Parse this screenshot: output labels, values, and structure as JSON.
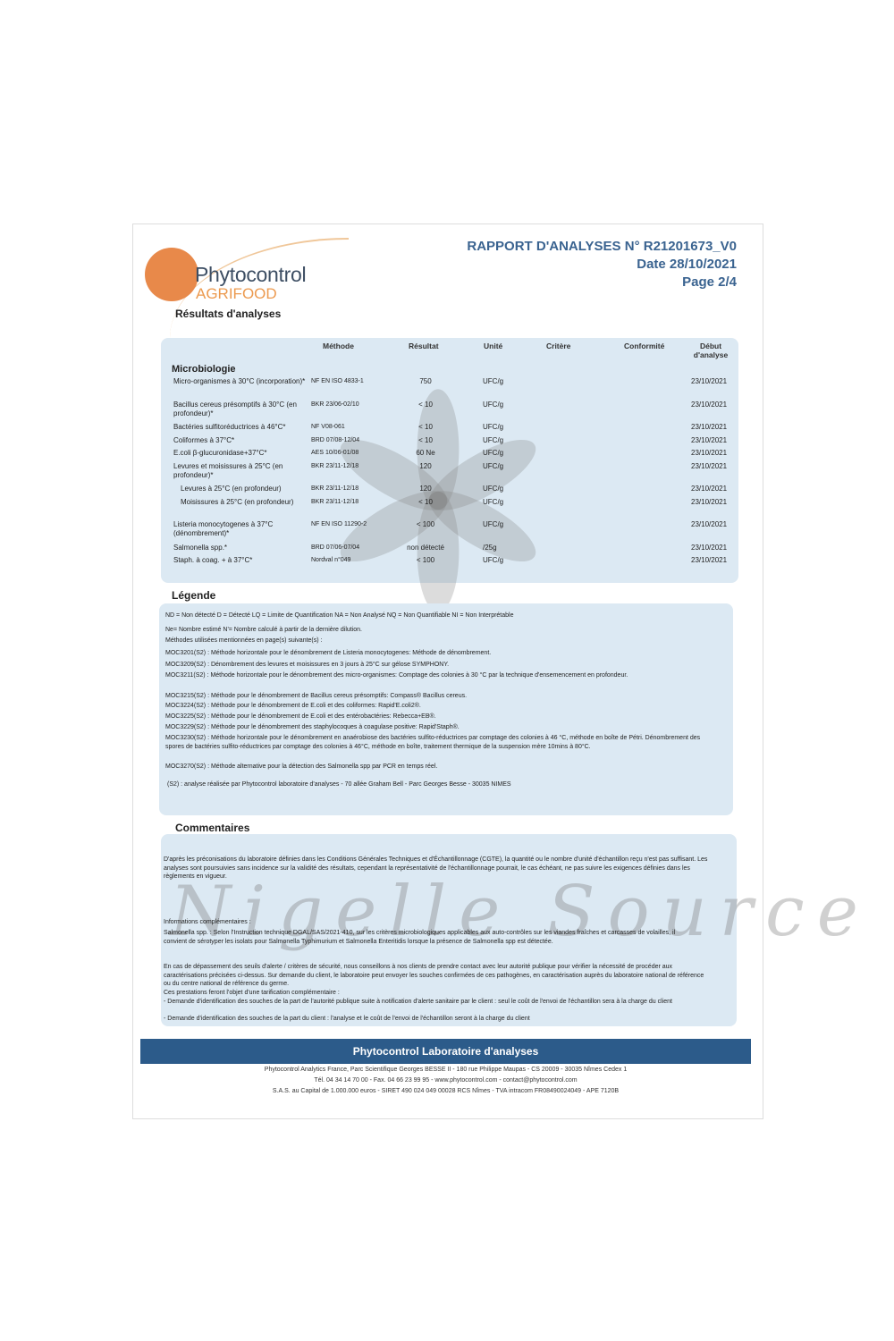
{
  "logo": {
    "name": "Phytocontrol",
    "sub": "AGRIFOOD",
    "colors": {
      "orange": "#e8894a",
      "navy": "#3d4e63"
    }
  },
  "header": {
    "title": "RAPPORT D'ANALYSES N° R21201673_V0",
    "date": "Date 28/10/2021",
    "page": "Page 2/4"
  },
  "section_results": "Résultats d'analyses",
  "table": {
    "headers": {
      "methode": "Méthode",
      "resultat": "Résultat",
      "unite": "Unité",
      "critere": "Critère",
      "conformite": "Conformité",
      "debut": "Début d'analyse"
    },
    "group": "Microbiologie",
    "rows": [
      {
        "param": "Micro-organismes à 30°C (incorporation)*",
        "methode": "NF EN ISO 4833-1",
        "resultat": "750",
        "unite": "UFC/g",
        "date": "23/10/2021"
      },
      {
        "param": "Bacillus cereus présomptifs à 30°C (en profondeur)*",
        "methode": "BKR 23/06-02/10",
        "resultat": "< 10",
        "unite": "UFC/g",
        "date": "23/10/2021"
      },
      {
        "param": "Bactéries sulfitoréductrices à 46°C*",
        "methode": "NF V08-061",
        "resultat": "< 10",
        "unite": "UFC/g",
        "date": "23/10/2021"
      },
      {
        "param": "Coliformes à 37°C*",
        "methode": "BRD 07/08-12/04",
        "resultat": "< 10",
        "unite": "UFC/g",
        "date": "23/10/2021"
      },
      {
        "param": "E.coli β-glucuronidase+37°C*",
        "methode": "AES 10/06-01/08",
        "resultat": "60 Ne",
        "unite": "UFC/g",
        "date": "23/10/2021"
      },
      {
        "param": "Levures et moisissures à 25°C (en profondeur)*",
        "methode": "BKR 23/11-12/18",
        "resultat": "120",
        "unite": "UFC/g",
        "date": "23/10/2021"
      },
      {
        "param": "Levures à 25°C (en profondeur)",
        "methode": "BKR 23/11-12/18",
        "resultat": "120",
        "unite": "UFC/g",
        "date": "23/10/2021",
        "indent": true
      },
      {
        "param": "Moisissures à 25°C (en profondeur)",
        "methode": "BKR 23/11-12/18",
        "resultat": "< 10",
        "unite": "UFC/g",
        "date": "23/10/2021",
        "indent": true
      },
      {
        "param": "Listeria monocytogenes à 37°C (dénombrement)*",
        "methode": "NF EN ISO 11290-2",
        "resultat": "< 100",
        "unite": "UFC/g",
        "date": "23/10/2021"
      },
      {
        "param": "Salmonella spp.*",
        "methode": "BRD 07/06-07/04",
        "resultat": "non détecté",
        "unite": "/25g",
        "date": "23/10/2021"
      },
      {
        "param": "Staph. à coag. + à 37°C*",
        "methode": "Nordval n°049",
        "resultat": "< 100",
        "unite": "UFC/g",
        "date": "23/10/2021"
      }
    ]
  },
  "legend": {
    "title": "Légende",
    "lines": [
      "ND = Non détecté   D = Détecté   LQ = Limite de Quantification   NA = Non Analysé   NQ = Non Quantifiable   NI = Non Interprétable",
      "Ne= Nombre estimé   N'= Nombre calculé à partir de la dernière dilution.",
      "Méthodes utilisées mentionnées en page(s) suivante(s) :",
      "MOC3201(S2) : Méthode horizontale pour le dénombrement de Listeria monocytogenes: Méthode de dénombrement.",
      "MOC3209(S2) : Dénombrement des levures et moisissures en 3 jours à 25°C sur gélose SYMPHONY.",
      "MOC3211(S2) : Méthode horizontale pour le dénombrement des micro-organismes: Comptage des colonies à 30 °C par la technique d'ensemencement en profondeur.",
      "MOC3215(S2) : Méthode pour le dénombrement de Bacillus cereus présomptifs: Compass® Bacillus cereus.",
      "MOC3224(S2) : Méthode pour le dénombrement de E.coli et des coliformes: Rapid'E.coli2®.",
      "MOC3225(S2) : Méthode pour le dénombrement de E.coli et des entérobactéries: Rebecca+EB®.",
      "MOC3229(S2) : Méthode pour le dénombrement des staphylocoques à coagulase positive: Rapid'Staph®.",
      "MOC3230(S2) : Méthode horizontale pour le dénombrement en anaérobiose des bactéries sulfito-réductrices par comptage des colonies à 46 °C, méthode en boîte de Pétri. Dénombrement des spores de bactéries sulfito-réductrices par comptage des colonies à 46°C, méthode en boîte, traitement thermique de la suspension mère 10mins à 80°C.",
      "MOC3270(S2) : Méthode alternative pour la détection des Salmonella spp par PCR en temps réel.",
      "(S2) : analyse réalisée par Phytocontrol laboratoire d'analyses - 70 allée Graham Bell - Parc Georges Besse - 30035 NIMES"
    ]
  },
  "comments": {
    "title": "Commentaires",
    "p1": "D'après les préconisations du laboratoire définies dans les Conditions Générales Techniques et d'Échantillonnage (CGTE), la quantité ou le nombre d'unité d'échantillon reçu n'est pas suffisant. Les analyses sont poursuivies sans incidence sur la validité des résultats, cependant la représentativité de l'échantillonnage pourrait, le cas échéant, ne pas suivre les exigences définies dans les règlements en vigueur.",
    "info_title": "Informations complémentaires :",
    "p2": "Salmonella spp. : Selon l'Instruction technique DGAL/SAS/2021-410, sur les critères microbiologiques applicables aux auto-contrôles sur les viandes fraîches et carcasses de volailles, il convient de sérotyper les isolats pour Salmonella Typhimurium et Salmonella Enteritidis lorsque la présence de Salmonella spp est détectée.",
    "p3": "En cas de dépassement des seuils d'alerte / critères de sécurité, nous conseillons à nos clients de prendre contact avec leur autorité publique pour vérifier la nécessité de procéder aux caractérisations précisées ci-dessus. Sur demande du client, le laboratoire peut envoyer les souches confirmées de ces pathogènes, en caractérisation auprès du laboratoire national de référence ou du centre national de référence du germe.",
    "p4": "Ces prestations feront l'objet d'une tarification complémentaire :",
    "p5": "- Demande d'identification des souches de la part de l'autorité publique suite à notification d'alerte sanitaire par le client : seul le coût de l'envoi de l'échantillon sera à la charge du client",
    "p6": "- Demande d'identification des souches de la part du client : l'analyse et le coût de l'envoi de l'échantillon seront à la charge du client"
  },
  "watermark": "Nigelle Source",
  "footer": {
    "bar": "Phytocontrol Laboratoire d'analyses",
    "line1": "Phytocontrol Analytics France, Parc Scientifique Georges BESSE II - 180 rue Philippe Maupas - CS 20009 - 30035 Nîmes Cedex 1",
    "line2": "Tél. 04 34 14 70 00 - Fax. 04 66 23 99 95 - www.phytocontrol.com - contact@phytocontrol.com",
    "line3": "S.A.S. au Capital de 1.000.000 euros - SIRET 490 024 049 00028 RCS Nîmes - TVA intracom FR08490024049 - APE 7120B",
    "color": "#2c5b8a"
  }
}
